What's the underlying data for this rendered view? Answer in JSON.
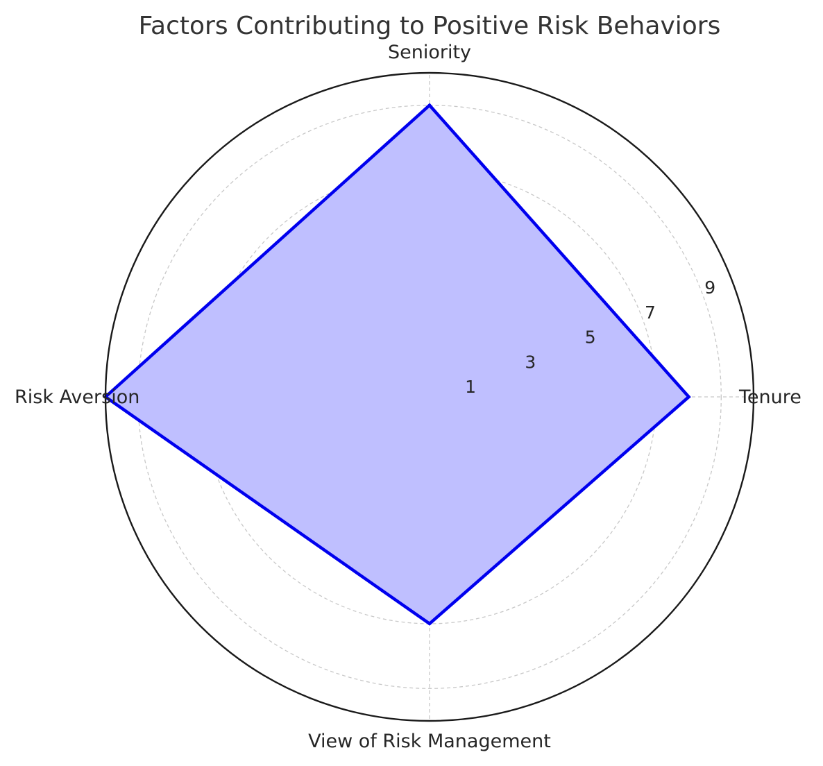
{
  "chart_data": {
    "type": "radar",
    "title": "Factors Contributing to Positive Risk Behaviors",
    "axes": [
      "Tenure",
      "Seniority",
      "Risk Aversion",
      "View of Risk Management"
    ],
    "series": [
      {
        "values": [
          8,
          9,
          10,
          7
        ],
        "line_color": "#0000ee",
        "fill_color": "#bfbfff"
      }
    ],
    "r_ticks": [
      1,
      3,
      5,
      7,
      9
    ],
    "r_grid_levels": [
      1,
      3,
      5,
      7,
      9
    ],
    "rlim": [
      0,
      10
    ],
    "grid": true,
    "legend": false
  }
}
